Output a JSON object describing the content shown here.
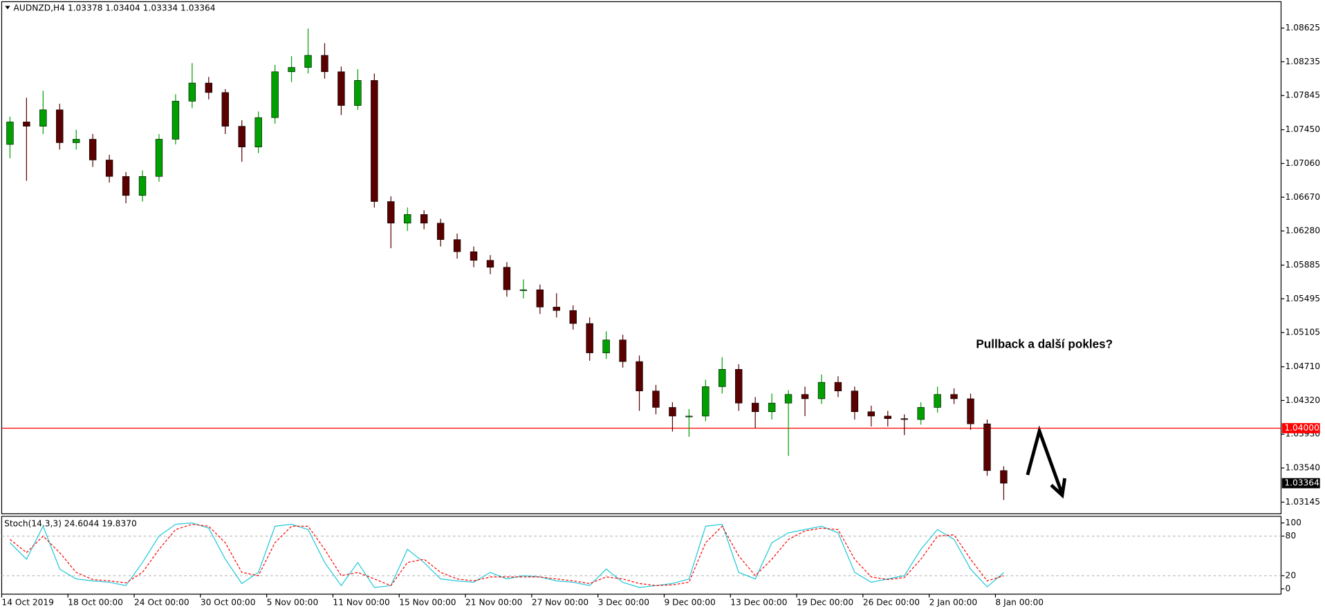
{
  "chart_data": [
    {
      "type": "candlestick",
      "title": "AUDNZD,H4  1.03378 1.03404 1.03334 1.03364",
      "categories": [
        "14 Oct 2019",
        null,
        null,
        null,
        "18 Oct 00:00",
        null,
        null,
        null,
        "24 Oct 00:00",
        null,
        null,
        null,
        "30 Oct 00:00",
        null,
        null,
        null,
        "5 Nov 00:00",
        null,
        null,
        null,
        "11 Nov 00:00",
        null,
        null,
        null,
        "15 Nov 00:00",
        null,
        null,
        null,
        "21 Nov 00:00",
        null,
        null,
        null,
        "27 Nov 00:00",
        null,
        null,
        null,
        "3 Dec 00:00",
        null,
        null,
        null,
        "9 Dec 00:00",
        null,
        null,
        null,
        "13 Dec 00:00",
        null,
        null,
        null,
        "19 Dec 00:00",
        null,
        null,
        null,
        "26 Dec 00:00",
        null,
        null,
        null,
        "2 Jan 00:00",
        null,
        null,
        null,
        "8 Jan 00:00"
      ],
      "open": [
        1.0728,
        1.0754,
        1.0749,
        1.0768,
        1.073,
        1.0734,
        1.071,
        1.0691,
        1.0669,
        1.0691,
        1.0734,
        1.0778,
        1.0799,
        1.0788,
        1.0749,
        1.0725,
        1.0759,
        1.0812,
        1.0817,
        1.0831,
        1.0812,
        1.0773,
        1.0802,
        1.0662,
        1.0637,
        1.0647,
        1.0637,
        1.0618,
        1.0604,
        1.0594,
        1.0586,
        1.056,
        1.056,
        1.054,
        1.0536,
        1.0521,
        1.0487,
        1.0502,
        1.0477,
        1.0443,
        1.0424,
        1.0414,
        1.0414,
        1.0448,
        1.0468,
        1.0429,
        1.0419,
        1.0429,
        1.0439,
        1.0434,
        1.0453,
        1.0443,
        1.0419,
        1.0414,
        1.0411,
        1.041,
        1.0424,
        1.0439,
        1.0434,
        1.0405,
        1.0351
      ],
      "high": [
        1.076,
        1.0782,
        1.079,
        1.0775,
        1.0745,
        1.074,
        1.0716,
        1.0696,
        1.0698,
        1.074,
        1.0786,
        1.0822,
        1.0806,
        1.0792,
        1.0756,
        1.0766,
        1.082,
        1.083,
        1.0862,
        1.0845,
        1.0818,
        1.0815,
        1.081,
        1.0668,
        1.0655,
        1.0652,
        1.0642,
        1.0625,
        1.061,
        1.06,
        1.0592,
        1.0572,
        1.0566,
        1.0556,
        1.0542,
        1.0528,
        1.0512,
        1.0508,
        1.0484,
        1.045,
        1.043,
        1.0422,
        1.0456,
        1.0482,
        1.0474,
        1.0436,
        1.044,
        1.0444,
        1.0448,
        1.0462,
        1.046,
        1.0448,
        1.0426,
        1.042,
        1.0416,
        1.043,
        1.0448,
        1.0446,
        1.044,
        1.041,
        1.0356
      ],
      "low": [
        1.0712,
        1.0686,
        1.074,
        1.0722,
        1.0722,
        1.0702,
        1.0684,
        1.066,
        1.0662,
        1.0685,
        1.0728,
        1.077,
        1.078,
        1.074,
        1.0708,
        1.0718,
        1.0752,
        1.08,
        1.081,
        1.0804,
        1.0762,
        1.0768,
        1.0655,
        1.0608,
        1.0628,
        1.063,
        1.061,
        1.0596,
        1.0586,
        1.0578,
        1.0552,
        1.055,
        1.0532,
        1.0528,
        1.0514,
        1.0478,
        1.048,
        1.047,
        1.042,
        1.0416,
        1.0396,
        1.039,
        1.0408,
        1.044,
        1.042,
        1.04,
        1.041,
        1.0368,
        1.0414,
        1.0428,
        1.0436,
        1.041,
        1.0402,
        1.0402,
        1.0392,
        1.0404,
        1.0418,
        1.0428,
        1.0398,
        1.0345,
        1.0317
      ],
      "close": [
        1.0754,
        1.0749,
        1.0768,
        1.073,
        1.0734,
        1.071,
        1.0691,
        1.0669,
        1.0691,
        1.0734,
        1.0778,
        1.0799,
        1.0788,
        1.0749,
        1.0725,
        1.0759,
        1.0812,
        1.0817,
        1.0831,
        1.0812,
        1.0773,
        1.0802,
        1.0662,
        1.0637,
        1.0647,
        1.0637,
        1.0618,
        1.0604,
        1.0594,
        1.0586,
        1.056,
        1.056,
        1.054,
        1.0536,
        1.0521,
        1.0487,
        1.0502,
        1.0477,
        1.0443,
        1.0424,
        1.0414,
        1.0414,
        1.0448,
        1.0468,
        1.0429,
        1.0419,
        1.0429,
        1.0439,
        1.0434,
        1.0453,
        1.0443,
        1.0419,
        1.0414,
        1.0411,
        1.041,
        1.0424,
        1.0439,
        1.0434,
        1.0405,
        1.0351,
        1.03364
      ],
      "up_color": "#00a000",
      "down_color": "#5a0000",
      "ylim": [
        1.0301,
        1.0893
      ],
      "yticks": [
        1.08625,
        1.08235,
        1.07845,
        {
          "value": 1.0745,
          "label": "1.07450"
        },
        {
          "value": 1.0706,
          "label": "1.07060"
        },
        {
          "value": 1.0667,
          "label": "1.06670"
        },
        {
          "value": 1.0628,
          "label": "1.06280"
        },
        1.05885,
        1.05495,
        1.05105,
        {
          "value": 1.0471,
          "label": "1.04710"
        },
        {
          "value": 1.0432,
          "label": "1.04320"
        },
        {
          "value": 1.0393,
          "label": "1.03930"
        },
        {
          "value": 1.0354,
          "label": "1.03540"
        },
        1.03145
      ],
      "hline": {
        "value": 1.04,
        "label": "1.04000",
        "color": "#ff0000"
      },
      "annotation": "Pullback a další pokles?"
    },
    {
      "type": "line",
      "title": "Stoch(14,3,3) 24.6044 19.8370",
      "series": [
        {
          "color": "#1ec8d8",
          "values": [
            70,
            45,
            95,
            30,
            15,
            12,
            10,
            5,
            40,
            80,
            98,
            100,
            92,
            45,
            8,
            25,
            95,
            98,
            90,
            40,
            5,
            40,
            2,
            5,
            60,
            40,
            15,
            12,
            10,
            25,
            15,
            20,
            18,
            12,
            10,
            5,
            30,
            10,
            2,
            5,
            8,
            15,
            95,
            98,
            25,
            15,
            70,
            85,
            90,
            95,
            85,
            25,
            10,
            15,
            20,
            60,
            90,
            75,
            30,
            3,
            24.6044
          ]
        },
        {
          "color": "#ff0000",
          "dashed": true,
          "values": [
            75,
            55,
            80,
            55,
            25,
            14,
            12,
            9,
            25,
            60,
            90,
            98,
            95,
            70,
            25,
            20,
            70,
            95,
            95,
            60,
            20,
            25,
            15,
            5,
            40,
            45,
            25,
            15,
            12,
            18,
            18,
            18,
            18,
            15,
            12,
            8,
            18,
            15,
            8,
            5,
            6,
            10,
            70,
            95,
            50,
            20,
            45,
            75,
            88,
            92,
            90,
            45,
            18,
            14,
            17,
            45,
            80,
            82,
            45,
            12,
            19.837
          ]
        }
      ],
      "ylim": [
        -8,
        110
      ],
      "yticks": [
        0,
        20,
        80,
        100
      ],
      "levels": [
        20,
        80
      ]
    }
  ]
}
